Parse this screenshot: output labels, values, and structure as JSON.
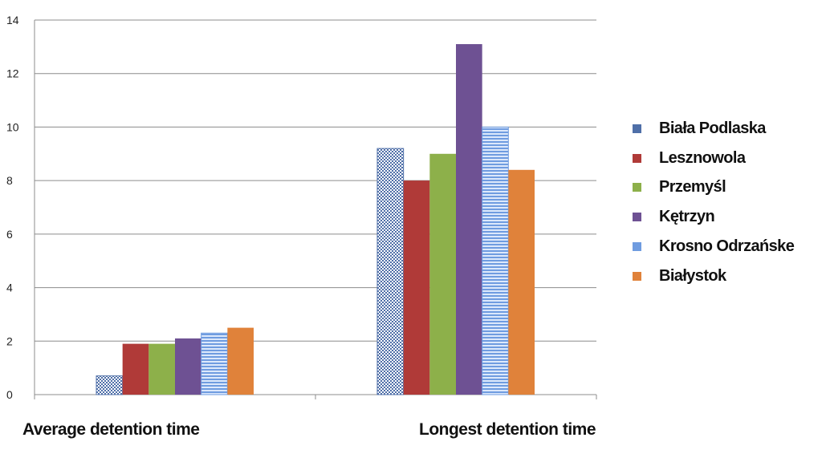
{
  "chart_data": {
    "type": "bar",
    "categories": [
      "Average detention time",
      "Longest detention time"
    ],
    "series": [
      {
        "name": "Biała Podlaska",
        "values": [
          0.7,
          9.2
        ],
        "color": "#4f6fa8",
        "pattern": "checker"
      },
      {
        "name": "Lesznowola",
        "values": [
          1.9,
          8.0
        ],
        "color": "#b03a38",
        "pattern": "solid"
      },
      {
        "name": "Przemyśl",
        "values": [
          1.9,
          9.0
        ],
        "color": "#8db04a",
        "pattern": "solid"
      },
      {
        "name": "Kętrzyn",
        "values": [
          2.1,
          13.1
        ],
        "color": "#6e5193",
        "pattern": "solid"
      },
      {
        "name": "Krosno Odrzańske",
        "values": [
          2.3,
          10.0
        ],
        "color": "#6f9ce0",
        "pattern": "stripes"
      },
      {
        "name": "Białystok",
        "values": [
          2.5,
          8.4
        ],
        "color": "#e0823a",
        "pattern": "solid"
      }
    ],
    "yticks": [
      "0",
      "2",
      "4",
      "6",
      "8",
      "10",
      "12",
      "14"
    ],
    "ylim": [
      0,
      14
    ],
    "grid": true,
    "legend_position": "right",
    "title": "",
    "xlabel": "",
    "ylabel": ""
  }
}
